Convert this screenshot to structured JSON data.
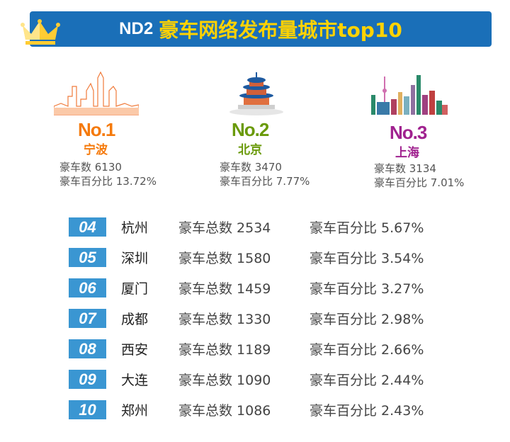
{
  "header": {
    "prefix": "ND2",
    "title": "豪车网络发布量城市top10"
  },
  "top3": [
    {
      "rank": "No.1",
      "city": "宁波",
      "count_label": "豪车数 6130",
      "pct_label": "豪车百分比 13.72%",
      "color": "#f57a0c"
    },
    {
      "rank": "No.2",
      "city": "北京",
      "count_label": "豪车数 3470",
      "pct_label": "豪车百分比 7.77%",
      "color": "#6a9a0a"
    },
    {
      "rank": "No.3",
      "city": "上海",
      "count_label": "豪车数 3134",
      "pct_label": "豪车百分比 7.01%",
      "color": "#a0228f"
    }
  ],
  "rows": [
    {
      "rank": "04",
      "city": "杭州",
      "count": "豪车总数 2534",
      "pct": "豪车百分比 5.67%"
    },
    {
      "rank": "05",
      "city": "深圳",
      "count": "豪车总数 1580",
      "pct": "豪车百分比 3.54%"
    },
    {
      "rank": "06",
      "city": "厦门",
      "count": "豪车总数 1459",
      "pct": "豪车百分比 3.27%"
    },
    {
      "rank": "07",
      "city": "成都",
      "count": "豪车总数 1330",
      "pct": "豪车百分比 2.98%"
    },
    {
      "rank": "08",
      "city": "西安",
      "count": "豪车总数 1189",
      "pct": "豪车百分比 2.66%"
    },
    {
      "rank": "09",
      "city": "大连",
      "count": "豪车总数 1090",
      "pct": "豪车百分比 2.44%"
    },
    {
      "rank": "10",
      "city": "郑州",
      "count": "豪车总数 1086",
      "pct": "豪车百分比 2.43%"
    }
  ]
}
